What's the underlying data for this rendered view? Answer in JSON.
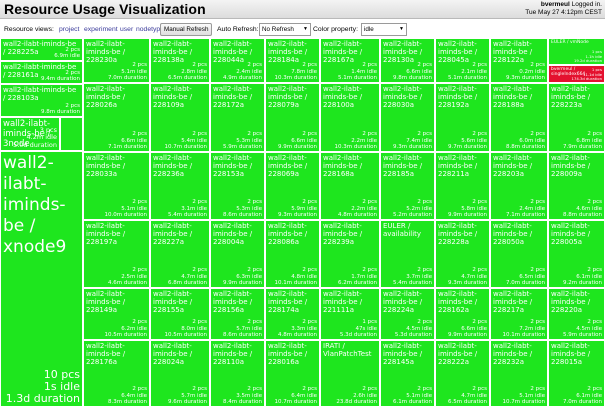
{
  "header": {
    "title": "Resource Usage Visualization",
    "username": "bvermeul",
    "logged_in_text": "Logged in.",
    "datetime": "Tue May 27 4:12pm CEST"
  },
  "toolbar": {
    "views_label": "Resource views:",
    "views": [
      "project",
      "experiment",
      "user",
      "nodetype"
    ],
    "refresh_button": "Manual Refresh",
    "auto_refresh_label": "Auto Refresh:",
    "auto_refresh_value": "No Refresh",
    "color_property_label": "Color property:",
    "color_property_value": "idle"
  },
  "colors": {
    "active": "#1ee61e",
    "idle_alert": "#e4112f",
    "tile_border": "#ffffff",
    "text": "#ffffff"
  },
  "treemap": {
    "tiles": [
      {
        "name": "wall2-ilabt-iminds-be / 228225a",
        "pcs": "2 pcs",
        "idle": "",
        "dur": "6.9m idle"
      },
      {
        "name": "wall2-ilabt-iminds-be / 228161a",
        "pcs": "2 pcs",
        "idle": "",
        "dur": "9.4m duration"
      },
      {
        "name": "wall2-ilabt-iminds-be / 228103a",
        "pcs": "2 pcs",
        "idle": "",
        "dur": "9.8m duration"
      },
      {
        "name": "wall2-ilabt-iminds-be / 3node",
        "pcs": "3 pcs",
        "idle": "4.2m idle",
        "dur": "5.0d duration"
      },
      {
        "name": "wall2-ilabt-iminds-be / xnode9",
        "pcs": "10 pcs",
        "idle": "1s idle",
        "dur": "1.3d duration"
      },
      {
        "name": "wall2-ilabt-iminds-be / 228230a",
        "pcs": "2 pcs",
        "idle": "5.1m idle",
        "dur": "7.0m duration"
      },
      {
        "name": "wall2-ilabt-iminds-be / 228138a",
        "pcs": "2 pcs",
        "idle": "2.8m idle",
        "dur": "6.5m duration"
      },
      {
        "name": "wall2-ilabt-iminds-be / 228044a",
        "pcs": "2 pcs",
        "idle": "2.4m idle",
        "dur": "4.9m duration"
      },
      {
        "name": "wall2-ilabt-iminds-be / 228184a",
        "pcs": "2 pcs",
        "idle": "7.8m idle",
        "dur": "10.3m duration"
      },
      {
        "name": "wall2-ilabt-iminds-be / 228167a",
        "pcs": "2 pcs",
        "idle": "1.4m idle",
        "dur": "5.1m duration"
      },
      {
        "name": "wall2-ilabt-iminds-be / 228130a",
        "pcs": "2 pcs",
        "idle": "6.6m idle",
        "dur": "9.8m duration"
      },
      {
        "name": "wall2-ilabt-iminds-be / 228045a",
        "pcs": "2 pcs",
        "idle": "2.1m idle",
        "dur": "5.1m duration"
      },
      {
        "name": "wall2-ilabt-iminds-be / 228122a",
        "pcs": "2 pcs",
        "idle": "0.2m idle",
        "dur": "9.3m duration"
      },
      {
        "name": "EULER / vmNode",
        "pcs": "1 pcs",
        "idle": "1.1h idle",
        "dur": "19.2d duration"
      },
      {
        "name": "bvermeul / singleIndex664",
        "pcs": "1 pcs",
        "idle": "11.1d idle",
        "dur": "174.3d duration"
      },
      {
        "name": "wall2-ilabt-iminds-be / 228026a",
        "pcs": "2 pcs",
        "idle": "6.6m idle",
        "dur": "7.1m duration"
      },
      {
        "name": "wall2-ilabt-iminds-be / 228109a",
        "pcs": "2 pcs",
        "idle": "5.4m idle",
        "dur": "10.7m duration"
      },
      {
        "name": "wall2-ilabt-iminds-be / 228172a",
        "pcs": "2 pcs",
        "idle": "5.3m idle",
        "dur": "5.9m duration"
      },
      {
        "name": "wall2-ilabt-iminds-be / 228079a",
        "pcs": "2 pcs",
        "idle": "6.6m idle",
        "dur": "9.9m duration"
      },
      {
        "name": "wall2-ilabt-iminds-be / 228100a",
        "pcs": "2 pcs",
        "idle": "2.2m idle",
        "dur": "10.3m duration"
      },
      {
        "name": "wall2-ilabt-iminds-be / 228030a",
        "pcs": "2 pcs",
        "idle": "7.4m idle",
        "dur": "9.3m duration"
      },
      {
        "name": "wall2-ilabt-iminds-be / 228192a",
        "pcs": "2 pcs",
        "idle": "5.6m idle",
        "dur": "9.7m duration"
      },
      {
        "name": "wall2-ilabt-iminds-be / 228188a",
        "pcs": "2 pcs",
        "idle": "6.0m idle",
        "dur": "8.8m duration"
      },
      {
        "name": "wall2-ilabt-iminds-be / 228223a",
        "pcs": "2 pcs",
        "idle": "6.8m idle",
        "dur": "7.9m duration"
      },
      {
        "name": "wall2-ilabt-iminds-be / 228033a",
        "pcs": "2 pcs",
        "idle": "5.1m idle",
        "dur": "10.0m duration"
      },
      {
        "name": "wall2-ilabt-iminds-be / 228236a",
        "pcs": "2 pcs",
        "idle": "3.1m idle",
        "dur": "5.4m duration"
      },
      {
        "name": "wall2-ilabt-iminds-be / 228153a",
        "pcs": "2 pcs",
        "idle": "5.3m idle",
        "dur": "8.6m duration"
      },
      {
        "name": "wall2-ilabt-iminds-be / 228069a",
        "pcs": "2 pcs",
        "idle": "5.9m idle",
        "dur": "9.3m duration"
      },
      {
        "name": "wall2-ilabt-iminds-be / 228168a",
        "pcs": "2 pcs",
        "idle": "2.2m idle",
        "dur": "4.8m duration"
      },
      {
        "name": "wall2-ilabt-iminds-be / 228185a",
        "pcs": "2 pcs",
        "idle": "5.2m idle",
        "dur": "5.2m duration"
      },
      {
        "name": "wall2-ilabt-iminds-be / 228211a",
        "pcs": "2 pcs",
        "idle": "5.8m idle",
        "dur": "9.9m duration"
      },
      {
        "name": "wall2-ilabt-iminds-be / 228203a",
        "pcs": "2 pcs",
        "idle": "2.4m idle",
        "dur": "7.1m duration"
      },
      {
        "name": "wall2-ilabt-iminds-be / 228009a",
        "pcs": "2 pcs",
        "idle": "4.6m idle",
        "dur": "8.8m duration"
      },
      {
        "name": "wall2-ilabt-iminds-be / 228197a",
        "pcs": "2 pcs",
        "idle": "2.5m idle",
        "dur": "4.6m duration"
      },
      {
        "name": "wall2-ilabt-iminds-be / 228227a",
        "pcs": "2 pcs",
        "idle": "4.7m idle",
        "dur": "6.8m duration"
      },
      {
        "name": "wall2-ilabt-iminds-be / 228004a",
        "pcs": "2 pcs",
        "idle": "6.3m idle",
        "dur": "9.9m duration"
      },
      {
        "name": "wall2-ilabt-iminds-be / 228086a",
        "pcs": "2 pcs",
        "idle": "4.8m idle",
        "dur": "10.1m duration"
      },
      {
        "name": "wall2-ilabt-iminds-be / 228239a",
        "pcs": "2 pcs",
        "idle": "1.7m idle",
        "dur": "6.2m duration"
      },
      {
        "name": "EULER / availability",
        "pcs": "2 pcs",
        "idle": "3.7m idle",
        "dur": "5.4m duration"
      },
      {
        "name": "wall2-ilabt-iminds-be / 228228a",
        "pcs": "2 pcs",
        "idle": "4.7m idle",
        "dur": "9.3m duration"
      },
      {
        "name": "wall2-ilabt-iminds-be / 228050a",
        "pcs": "2 pcs",
        "idle": "6.5m idle",
        "dur": "7.0m duration"
      },
      {
        "name": "wall2-ilabt-iminds-be / 228005a",
        "pcs": "2 pcs",
        "idle": "6.1m idle",
        "dur": "9.2m duration"
      },
      {
        "name": "wall2-ilabt-iminds-be / 228149a",
        "pcs": "2 pcs",
        "idle": "6.2m idle",
        "dur": "10.5m duration"
      },
      {
        "name": "wall2-ilabt-iminds-be / 228155a",
        "pcs": "2 pcs",
        "idle": "8.0m idle",
        "dur": "10.5m duration"
      },
      {
        "name": "wall2-ilabt-iminds-be / 228156a",
        "pcs": "2 pcs",
        "idle": "5.7m idle",
        "dur": "8.6m duration"
      },
      {
        "name": "wall2-ilabt-iminds-be / 228174a",
        "pcs": "2 pcs",
        "idle": "3.3m idle",
        "dur": "4.8m duration"
      },
      {
        "name": "wall2-ilabt-iminds-be / 221111a",
        "pcs": "1 pcs",
        "idle": "47s idle",
        "dur": "5.3d duration"
      },
      {
        "name": "wall2-ilabt-iminds-be / 228224a",
        "pcs": "2 pcs",
        "idle": "4.5m idle",
        "dur": "5.3d duration"
      },
      {
        "name": "wall2-ilabt-iminds-be / 228162a",
        "pcs": "2 pcs",
        "idle": "6.6m idle",
        "dur": "9.9m duration"
      },
      {
        "name": "wall2-ilabt-iminds-be / 228217a",
        "pcs": "2 pcs",
        "idle": "7.2m idle",
        "dur": "10.1m duration"
      },
      {
        "name": "wall2-ilabt-iminds-be / 228220a",
        "pcs": "2 pcs",
        "idle": "4.5m idle",
        "dur": "5.9m duration"
      },
      {
        "name": "wall2-ilabt-iminds-be / 228176a",
        "pcs": "2 pcs",
        "idle": "6.4m idle",
        "dur": "8.3m duration"
      },
      {
        "name": "wall2-ilabt-iminds-be / 228024a",
        "pcs": "2 pcs",
        "idle": "5.7m idle",
        "dur": "9.6m duration"
      },
      {
        "name": "wall2-ilabt-iminds-be / 228110a",
        "pcs": "2 pcs",
        "idle": "3.5m idle",
        "dur": "8.4m duration"
      },
      {
        "name": "wall2-ilabt-iminds-be / 228016a",
        "pcs": "2 pcs",
        "idle": "6.4m idle",
        "dur": "10.7m duration"
      },
      {
        "name": "IRATI / VlanPatchTest",
        "pcs": "2 pcs",
        "idle": "2.6h idle",
        "dur": "23.8d duration"
      },
      {
        "name": "wall2-ilabt-iminds-be / 228145a",
        "pcs": "2 pcs",
        "idle": "5.1m idle",
        "dur": "6.1m duration"
      },
      {
        "name": "wall2-ilabt-iminds-be / 228222a",
        "pcs": "2 pcs",
        "idle": "4.7m idle",
        "dur": "6.5m duration"
      },
      {
        "name": "wall2-ilabt-iminds-be / 228232a",
        "pcs": "2 pcs",
        "idle": "5.1m idle",
        "dur": "10.7m duration"
      },
      {
        "name": "wall2-ilabt-iminds-be / 228015a",
        "pcs": "2 pcs",
        "idle": "6.1m idle",
        "dur": "7.0m duration"
      }
    ]
  }
}
